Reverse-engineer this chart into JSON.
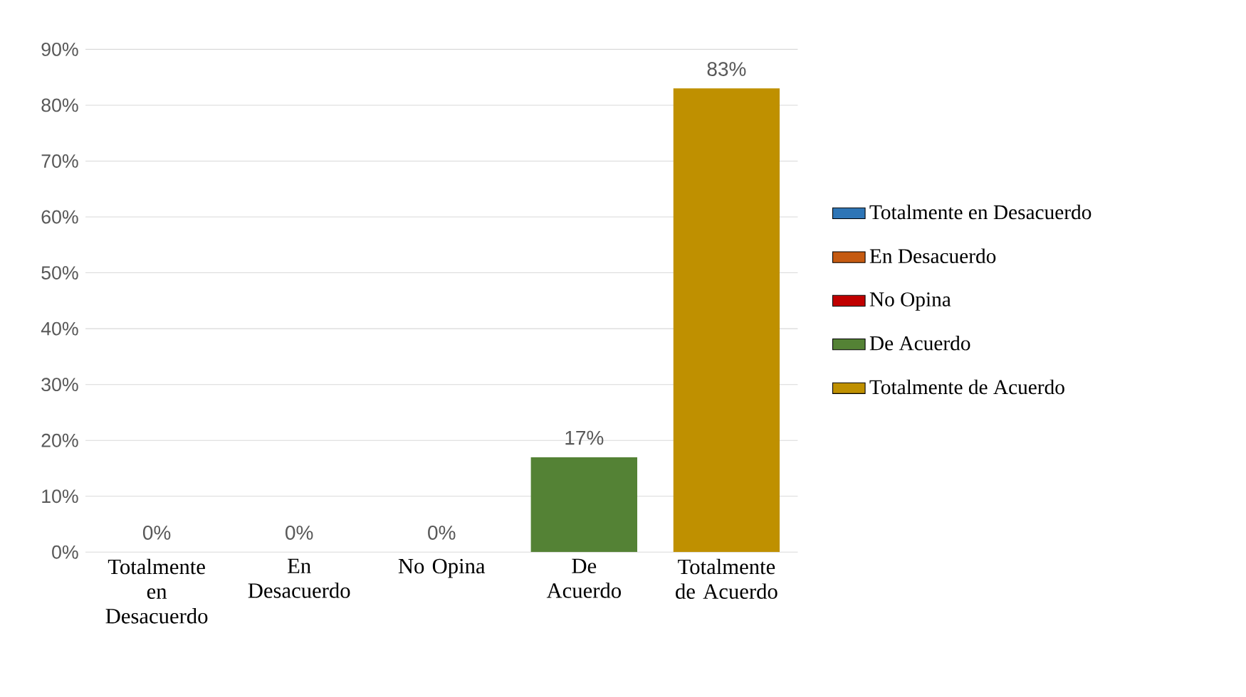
{
  "chart_data": {
    "type": "bar",
    "categories": [
      "Totalmente en Desacuerdo",
      "En Desacuerdo",
      "No Opina",
      "De Acuerdo",
      "Totalmente de Acuerdo"
    ],
    "series": [
      {
        "name": "Totalmente en Desacuerdo",
        "color": "#2e75b6",
        "values": [
          0,
          null,
          null,
          null,
          null
        ],
        "value_labels": [
          "0%",
          null,
          null,
          null,
          null
        ]
      },
      {
        "name": "En Desacuerdo",
        "color": "#c55a11",
        "values": [
          null,
          0,
          null,
          null,
          null
        ],
        "value_labels": [
          null,
          "0%",
          null,
          null,
          null
        ]
      },
      {
        "name": "No Opina",
        "color": "#c00000",
        "values": [
          null,
          null,
          0,
          null,
          null
        ],
        "value_labels": [
          null,
          null,
          "0%",
          null,
          null
        ]
      },
      {
        "name": "De Acuerdo",
        "color": "#548235",
        "values": [
          null,
          null,
          null,
          17,
          null
        ],
        "value_labels": [
          null,
          null,
          null,
          "17%",
          null
        ]
      },
      {
        "name": "Totalmente de Acuerdo",
        "color": "#bf9000",
        "values": [
          null,
          null,
          null,
          null,
          83
        ],
        "value_labels": [
          null,
          null,
          null,
          null,
          "83%"
        ]
      }
    ],
    "ylim": [
      0,
      90
    ],
    "yticks": [
      {
        "value": 0,
        "label": "0%"
      },
      {
        "value": 10,
        "label": "10%"
      },
      {
        "value": 20,
        "label": "20%"
      },
      {
        "value": 30,
        "label": "30%"
      },
      {
        "value": 40,
        "label": "40%"
      },
      {
        "value": 50,
        "label": "50%"
      },
      {
        "value": 60,
        "label": "60%"
      },
      {
        "value": 70,
        "label": "70%"
      },
      {
        "value": 80,
        "label": "80%"
      },
      {
        "value": 90,
        "label": "90%"
      }
    ],
    "grid": "y",
    "legend": "right"
  }
}
